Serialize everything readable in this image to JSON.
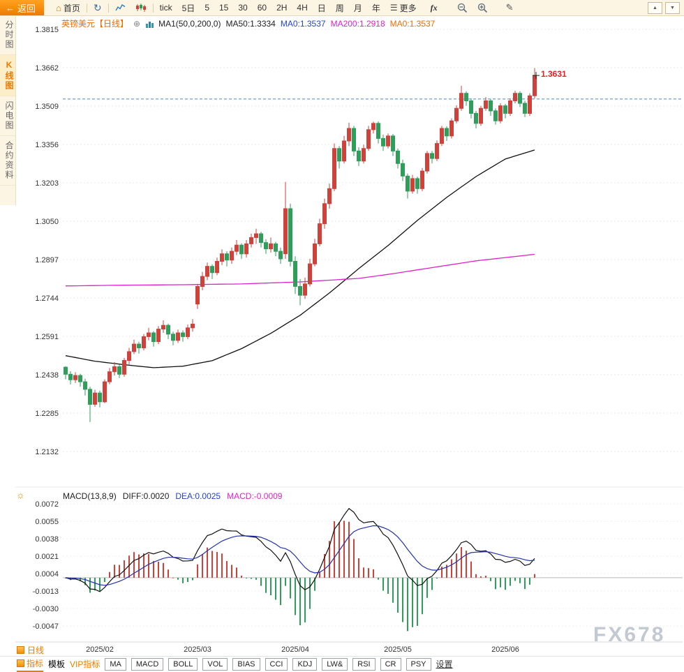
{
  "toolbar": {
    "back": "返回",
    "home": "首页",
    "tick": "tick",
    "five_day": "5日",
    "intervals": [
      "5",
      "15",
      "30",
      "60",
      "2H",
      "4H",
      "日",
      "周",
      "月",
      "年"
    ],
    "more": "更多",
    "fx": "fx"
  },
  "icons": {
    "back_arrow": "←",
    "home": "⌂",
    "refresh": "↻",
    "menu": "☰",
    "pencil": "✎",
    "expand": "⊕",
    "tri_up": "▲",
    "tri_down": "▼",
    "settings_sun": "☼"
  },
  "sidebar": {
    "items": [
      {
        "label": "分时图",
        "active": false
      },
      {
        "label": "K线图",
        "active": true
      },
      {
        "label": "闪电图",
        "active": false
      },
      {
        "label": "合约资料",
        "active": false
      }
    ]
  },
  "chart_header": {
    "symbol": "英镑美元【日线】",
    "ma_def": "MA1(50,0,200,0)",
    "ma50": "MA50:1.3334",
    "ma0_blue": "MA0:1.3537",
    "ma200": "MA200:1.2918",
    "ma0_orange": "MA0:1.3537"
  },
  "macd_header": {
    "title": "MACD(13,8,9)",
    "diff": "DIFF:0.0020",
    "dea": "DEA:0.0025",
    "macd": "MACD:-0.0009"
  },
  "bottom": {
    "period_tab": "日线",
    "tabs": [
      "指标",
      "模板",
      "VIP指标"
    ],
    "indicator_buttons": [
      "MA",
      "MACD",
      "BOLL",
      "VOL",
      "BIAS",
      "CCI",
      "KDJ",
      "LW&",
      "RSI",
      "CR",
      "PSY"
    ],
    "settings": "设置"
  },
  "watermark": "FX678",
  "colors": {
    "up": "#cf423b",
    "down": "#2f9e5a",
    "ma50": "#111111",
    "ma200": "#dd22cc",
    "price_line": "#4a86c8",
    "diff": "#111111",
    "dea": "#2233aa",
    "accent": "#ef7a00",
    "annotation": "#e02020"
  },
  "chart_data": {
    "type": "candlestick+macd",
    "title": "英镑美元 日线 (GBP/USD daily)",
    "main": {
      "ticks": [
        "1.3815",
        "1.3662",
        "1.3509",
        "1.3356",
        "1.3203",
        "1.3050",
        "1.2897",
        "1.2744",
        "1.2591",
        "1.2438",
        "1.2285",
        "1.2132"
      ],
      "price_line": 1.3537,
      "annotation": {
        "index": 96,
        "text": "1.3631"
      },
      "x_labels": [
        {
          "label": "2025/02",
          "index": 7
        },
        {
          "label": "2025/03",
          "index": 27
        },
        {
          "label": "2025/04",
          "index": 47
        },
        {
          "label": "2025/05",
          "index": 68
        },
        {
          "label": "2025/06",
          "index": 90
        }
      ],
      "ma50": [
        [
          0,
          1.2514
        ],
        [
          6,
          1.2492
        ],
        [
          12,
          1.2478
        ],
        [
          18,
          1.2466
        ],
        [
          24,
          1.2472
        ],
        [
          30,
          1.2494
        ],
        [
          36,
          1.2542
        ],
        [
          42,
          1.2603
        ],
        [
          48,
          1.2675
        ],
        [
          54,
          1.2764
        ],
        [
          60,
          1.2861
        ],
        [
          66,
          1.2953
        ],
        [
          72,
          1.3053
        ],
        [
          78,
          1.3145
        ],
        [
          84,
          1.3228
        ],
        [
          90,
          1.3298
        ],
        [
          96,
          1.3334
        ]
      ],
      "ma200": [
        [
          0,
          1.2792
        ],
        [
          12,
          1.2795
        ],
        [
          24,
          1.2797
        ],
        [
          36,
          1.28
        ],
        [
          48,
          1.2808
        ],
        [
          60,
          1.2822
        ],
        [
          66,
          1.2838
        ],
        [
          72,
          1.2856
        ],
        [
          78,
          1.2874
        ],
        [
          84,
          1.2892
        ],
        [
          90,
          1.2905
        ],
        [
          96,
          1.2918
        ]
      ],
      "candles": [
        [
          1.2468,
          1.2472,
          1.242,
          1.244
        ],
        [
          1.244,
          1.2452,
          1.24,
          1.2418
        ],
        [
          1.2418,
          1.2448,
          1.2405,
          1.2435
        ],
        [
          1.2435,
          1.2442,
          1.239,
          1.241
        ],
        [
          1.241,
          1.2422,
          1.2355,
          1.238
        ],
        [
          1.238,
          1.239,
          1.2249,
          1.232
        ],
        [
          1.232,
          1.2378,
          1.231,
          1.2365
        ],
        [
          1.2365,
          1.2375,
          1.2308,
          1.233
        ],
        [
          1.233,
          1.242,
          1.2325,
          1.241
        ],
        [
          1.241,
          1.2465,
          1.24,
          1.245
        ],
        [
          1.245,
          1.2488,
          1.2435,
          1.247
        ],
        [
          1.247,
          1.248,
          1.2425,
          1.244
        ],
        [
          1.244,
          1.2505,
          1.243,
          1.2495
        ],
        [
          1.2495,
          1.2545,
          1.248,
          1.253
        ],
        [
          1.253,
          1.2578,
          1.252,
          1.256
        ],
        [
          1.256,
          1.257,
          1.2522,
          1.2545
        ],
        [
          1.2545,
          1.26,
          1.2535,
          1.259
        ],
        [
          1.259,
          1.2625,
          1.2575,
          1.2605
        ],
        [
          1.2605,
          1.2612,
          1.255,
          1.257
        ],
        [
          1.257,
          1.2632,
          1.256,
          1.262
        ],
        [
          1.262,
          1.2655,
          1.2605,
          1.2635
        ],
        [
          1.2635,
          1.2642,
          1.258,
          1.26
        ],
        [
          1.26,
          1.261,
          1.2555,
          1.2575
        ],
        [
          1.2575,
          1.2618,
          1.2565,
          1.2605
        ],
        [
          1.2605,
          1.2615,
          1.257,
          1.259
        ],
        [
          1.259,
          1.2638,
          1.258,
          1.2625
        ],
        [
          1.2625,
          1.266,
          1.261,
          1.264
        ],
        [
          1.272,
          1.28,
          1.27,
          1.279
        ],
        [
          1.279,
          1.2848,
          1.2775,
          1.283
        ],
        [
          1.283,
          1.2885,
          1.2815,
          1.287
        ],
        [
          1.287,
          1.2878,
          1.282,
          1.2845
        ],
        [
          1.2845,
          1.2905,
          1.2835,
          1.289
        ],
        [
          1.289,
          1.2938,
          1.2875,
          1.292
        ],
        [
          1.292,
          1.293,
          1.287,
          1.2895
        ],
        [
          1.2895,
          1.2945,
          1.288,
          1.293
        ],
        [
          1.293,
          1.2975,
          1.2915,
          1.2955
        ],
        [
          1.2955,
          1.2962,
          1.29,
          1.292
        ],
        [
          1.292,
          1.2975,
          1.2905,
          1.296
        ],
        [
          1.296,
          1.3,
          1.2945,
          1.2985
        ],
        [
          1.2985,
          1.302,
          1.296,
          1.3
        ],
        [
          1.3,
          1.3008,
          1.2945,
          1.2965
        ],
        [
          1.2965,
          1.2978,
          1.292,
          1.294
        ],
        [
          1.294,
          1.2985,
          1.2925,
          1.296
        ],
        [
          1.296,
          1.2968,
          1.291,
          1.293
        ],
        [
          1.293,
          1.2945,
          1.288,
          1.29
        ],
        [
          1.292,
          1.3207,
          1.29,
          1.31
        ],
        [
          1.31,
          1.312,
          1.287,
          1.289
        ],
        [
          1.289,
          1.291,
          1.276,
          1.279
        ],
        [
          1.279,
          1.282,
          1.2715,
          1.2755
        ],
        [
          1.2755,
          1.2825,
          1.274,
          1.28
        ],
        [
          1.28,
          1.29,
          1.279,
          1.288
        ],
        [
          1.288,
          1.298,
          1.287,
          1.296
        ],
        [
          1.296,
          1.306,
          1.295,
          1.304
        ],
        [
          1.304,
          1.314,
          1.302,
          1.312
        ],
        [
          1.312,
          1.32,
          1.31,
          1.318
        ],
        [
          1.318,
          1.336,
          1.317,
          1.334
        ],
        [
          1.334,
          1.335,
          1.326,
          1.329
        ],
        [
          1.329,
          1.339,
          1.328,
          1.337
        ],
        [
          1.337,
          1.3443,
          1.335,
          1.342
        ],
        [
          1.342,
          1.343,
          1.331,
          1.333
        ],
        [
          1.333,
          1.3345,
          1.327,
          1.329
        ],
        [
          1.329,
          1.3355,
          1.328,
          1.334
        ],
        [
          1.334,
          1.343,
          1.333,
          1.3415
        ],
        [
          1.3415,
          1.3447,
          1.34,
          1.344
        ],
        [
          1.344,
          1.3448,
          1.336,
          1.338
        ],
        [
          1.338,
          1.3395,
          1.333,
          1.335
        ],
        [
          1.335,
          1.34,
          1.334,
          1.339
        ],
        [
          1.339,
          1.3398,
          1.331,
          1.333
        ],
        [
          1.333,
          1.334,
          1.326,
          1.328
        ],
        [
          1.328,
          1.3295,
          1.321,
          1.323
        ],
        [
          1.323,
          1.324,
          1.314,
          1.317
        ],
        [
          1.317,
          1.3235,
          1.316,
          1.322
        ],
        [
          1.322,
          1.3228,
          1.316,
          1.318
        ],
        [
          1.318,
          1.3262,
          1.317,
          1.325
        ],
        [
          1.325,
          1.333,
          1.324,
          1.332
        ],
        [
          1.332,
          1.333,
          1.328,
          1.33
        ],
        [
          1.33,
          1.3372,
          1.329,
          1.336
        ],
        [
          1.336,
          1.343,
          1.335,
          1.342
        ],
        [
          1.342,
          1.3428,
          1.337,
          1.339
        ],
        [
          1.339,
          1.346,
          1.338,
          1.345
        ],
        [
          1.345,
          1.3512,
          1.344,
          1.35
        ],
        [
          1.35,
          1.359,
          1.349,
          1.356
        ],
        [
          1.356,
          1.3568,
          1.351,
          1.353
        ],
        [
          1.353,
          1.354,
          1.346,
          1.348
        ],
        [
          1.348,
          1.349,
          1.342,
          1.344
        ],
        [
          1.344,
          1.351,
          1.343,
          1.35
        ],
        [
          1.35,
          1.3545,
          1.349,
          1.353
        ],
        [
          1.353,
          1.3538,
          1.347,
          1.349
        ],
        [
          1.349,
          1.35,
          1.3435,
          1.345
        ],
        [
          1.345,
          1.352,
          1.344,
          1.351
        ],
        [
          1.351,
          1.3518,
          1.346,
          1.348
        ],
        [
          1.348,
          1.354,
          1.347,
          1.353
        ],
        [
          1.353,
          1.357,
          1.352,
          1.356
        ],
        [
          1.356,
          1.3568,
          1.3505,
          1.352
        ],
        [
          1.352,
          1.353,
          1.3465,
          1.348
        ],
        [
          1.348,
          1.356,
          1.347,
          1.355
        ],
        [
          1.355,
          1.366,
          1.354,
          1.3631
        ]
      ]
    },
    "macd": {
      "ticks": [
        "0.0072",
        "0.0055",
        "0.0038",
        "0.0021",
        "0.0004",
        "-0.0013",
        "-0.0030",
        "-0.0047"
      ],
      "params": {
        "short": 8,
        "long": 13,
        "signal": 9
      }
    }
  }
}
